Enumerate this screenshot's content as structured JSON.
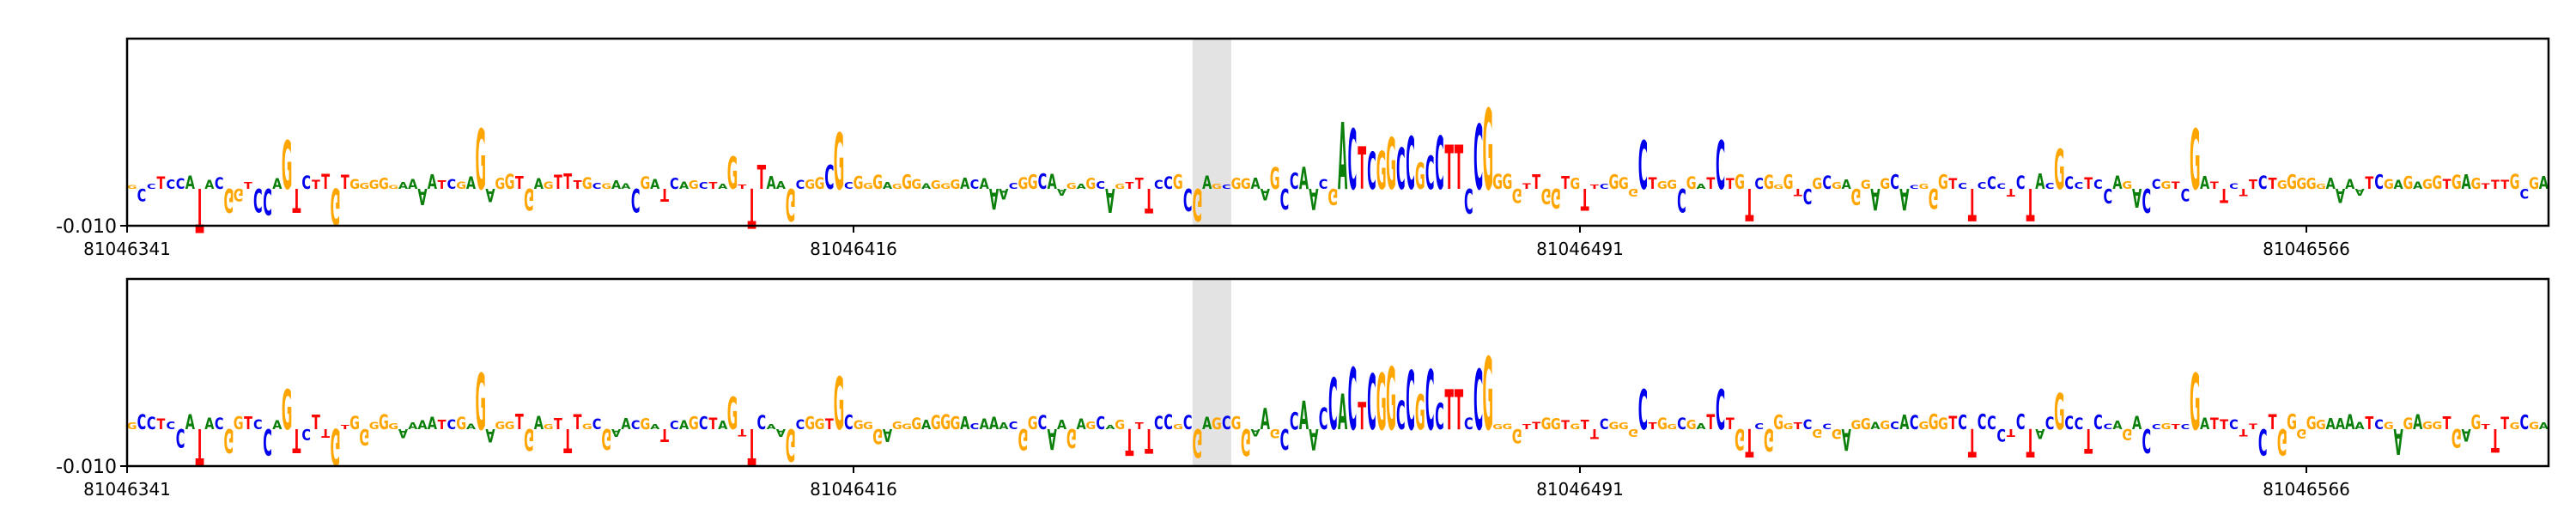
{
  "colors": {
    "A": "#0a7f0a",
    "C": "#0000ee",
    "G": "#ffa500",
    "T": "#ff0000",
    "highlight": "#e3e3e3",
    "frame": "#000000"
  },
  "chart_data": [
    {
      "type": "sequence-logo",
      "title": "",
      "xlabel": "",
      "ylabel": "",
      "x_ticks": [
        "81046341",
        "81046416",
        "81046491",
        "81046566"
      ],
      "y_ticks": [
        "-0.010"
      ],
      "xlim": [
        81046341,
        81046591
      ],
      "highlight_x": [
        81046451,
        81046455
      ],
      "sequence": "GCCTCCAGACCGTCCATTCTTCTGGGGGAAAATCGAGAGGTGAGTTTGCGAACGATCAGCTACTCCAAACGGTTCGGGAGGGAGGGACAAACGGCAAGAGCAGTTTCCGCCAGCGGAAGCCAACCACTCGGCCGCCAGCGGGGGTTGGTGTTCGGGGTGGCGATTTGGCGGGTCGCGAGGAGCACGGGTCACCCTCCAC",
      "peaks": [
        {
          "x": 81046357,
          "base": "G",
          "h": 0.006
        },
        {
          "x": 81046377,
          "base": "G",
          "h": 0.0075
        },
        {
          "x": 81046403,
          "base": "G",
          "h": 0.004
        },
        {
          "x": 81046406,
          "base": "T",
          "h": 0.003
        },
        {
          "x": 81046413,
          "base": "C",
          "h": 0.003
        },
        {
          "x": 81046414,
          "base": "G",
          "h": 0.007
        },
        {
          "x": 81046477,
          "base": "T",
          "h": 0.0055
        },
        {
          "x": 81046478,
          "base": "T",
          "h": 0.0055
        },
        {
          "x": 81046480,
          "base": "C",
          "h": 0.008
        },
        {
          "x": 81046481,
          "base": "G",
          "h": 0.01
        },
        {
          "x": 81046497,
          "base": "C",
          "h": 0.006
        },
        {
          "x": 81046505,
          "base": "C",
          "h": 0.006
        },
        {
          "x": 81046540,
          "base": "G",
          "h": 0.005
        },
        {
          "x": 81046554,
          "base": "G",
          "h": 0.0075
        }
      ],
      "dips": [
        {
          "x": 81046348,
          "base": "T",
          "h": -0.0055
        },
        {
          "x": 81046351,
          "base": "G",
          "h": -0.003
        },
        {
          "x": 81046358,
          "base": "T",
          "h": -0.003
        },
        {
          "x": 81046362,
          "base": "G",
          "h": -0.0045
        },
        {
          "x": 81046405,
          "base": "T",
          "h": -0.005
        },
        {
          "x": 81046409,
          "base": "G",
          "h": -0.004
        },
        {
          "x": 81046451,
          "base": "G",
          "h": -0.004
        },
        {
          "x": 81046465,
          "base": "G",
          "h": -0.002
        },
        {
          "x": 81046477,
          "base": "T",
          "h": -0.004
        },
        {
          "x": 81046508,
          "base": "T",
          "h": -0.004
        },
        {
          "x": 81046531,
          "base": "T",
          "h": -0.004
        },
        {
          "x": 81046537,
          "base": "T",
          "h": -0.004
        }
      ]
    },
    {
      "type": "sequence-logo",
      "title": "",
      "xlabel": "",
      "ylabel": "",
      "x_ticks": [
        "81046341",
        "81046416",
        "81046491",
        "81046566"
      ],
      "y_ticks": [
        "-0.010"
      ],
      "xlim": [
        81046341,
        81046591
      ],
      "highlight_x": [
        81046451,
        81046455
      ],
      "sequence": "GCCTCCAGACCGTCCATTCTTCTGGGGGAAAATCGAGAGGTGAGTTTGCGAACGATCAGCTACTCCAAACGGTTCGGGAGGGAGGGACAAACGGCAAGAGCAGTTTCCGCCAGCGGAAGCCAACCACTCGGCCGCCAGCGGGGGTTGGTGTTCGGGGTGGCGATTTGGCGGGTCGCGAGGAGCACGGGTCACCCTCCAC",
      "peaks": [
        {
          "x": 81046357,
          "base": "G",
          "h": 0.005
        },
        {
          "x": 81046377,
          "base": "G",
          "h": 0.007
        },
        {
          "x": 81046403,
          "base": "G",
          "h": 0.004
        },
        {
          "x": 81046414,
          "base": "G",
          "h": 0.0065
        },
        {
          "x": 81046477,
          "base": "T",
          "h": 0.005
        },
        {
          "x": 81046478,
          "base": "T",
          "h": 0.005
        },
        {
          "x": 81046480,
          "base": "C",
          "h": 0.0075
        },
        {
          "x": 81046481,
          "base": "G",
          "h": 0.009
        },
        {
          "x": 81046497,
          "base": "C",
          "h": 0.005
        },
        {
          "x": 81046505,
          "base": "C",
          "h": 0.005
        },
        {
          "x": 81046540,
          "base": "G",
          "h": 0.0045
        },
        {
          "x": 81046554,
          "base": "G",
          "h": 0.007
        }
      ],
      "dips": [
        {
          "x": 81046348,
          "base": "T",
          "h": -0.0045
        },
        {
          "x": 81046351,
          "base": "G",
          "h": -0.003
        },
        {
          "x": 81046358,
          "base": "T",
          "h": -0.003
        },
        {
          "x": 81046362,
          "base": "G",
          "h": -0.0045
        },
        {
          "x": 81046405,
          "base": "T",
          "h": -0.0045
        },
        {
          "x": 81046409,
          "base": "G",
          "h": -0.004
        },
        {
          "x": 81046451,
          "base": "G",
          "h": -0.0035
        },
        {
          "x": 81046477,
          "base": "T",
          "h": -0.0035
        },
        {
          "x": 81046508,
          "base": "T",
          "h": -0.0035
        },
        {
          "x": 81046531,
          "base": "T",
          "h": -0.0035
        },
        {
          "x": 81046537,
          "base": "T",
          "h": -0.0035
        }
      ]
    }
  ]
}
